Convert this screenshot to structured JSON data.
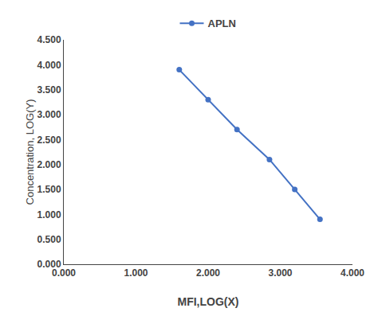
{
  "chart_data": {
    "type": "line",
    "x": [
      1.6,
      2.0,
      2.4,
      2.85,
      3.2,
      3.55
    ],
    "series": [
      {
        "name": "APLN",
        "color": "#4472C4",
        "marker": "circle",
        "values": [
          3.9,
          3.3,
          2.7,
          2.1,
          1.5,
          0.9
        ]
      }
    ],
    "xlabel": "MFI,LOG(X)",
    "ylabel": "Concentration, LOG(Y)",
    "xlim": [
      0.0,
      4.0
    ],
    "ylim": [
      0.0,
      4.5
    ],
    "xticks": [
      {
        "value": 0.0,
        "label": "0.000"
      },
      {
        "value": 1.0,
        "label": "1.000"
      },
      {
        "value": 2.0,
        "label": "2.000"
      },
      {
        "value": 3.0,
        "label": "3.000"
      },
      {
        "value": 4.0,
        "label": "4.000"
      }
    ],
    "yticks": [
      {
        "value": 0.0,
        "label": "0.000"
      },
      {
        "value": 0.5,
        "label": "0.500"
      },
      {
        "value": 1.0,
        "label": "1.000"
      },
      {
        "value": 1.5,
        "label": "1.500"
      },
      {
        "value": 2.0,
        "label": "2.000"
      },
      {
        "value": 2.5,
        "label": "2.500"
      },
      {
        "value": 3.0,
        "label": "3.000"
      },
      {
        "value": 3.5,
        "label": "3.500"
      },
      {
        "value": 4.0,
        "label": "4.000"
      },
      {
        "value": 4.5,
        "label": "4.500"
      }
    ],
    "grid": false,
    "legend": "top"
  }
}
